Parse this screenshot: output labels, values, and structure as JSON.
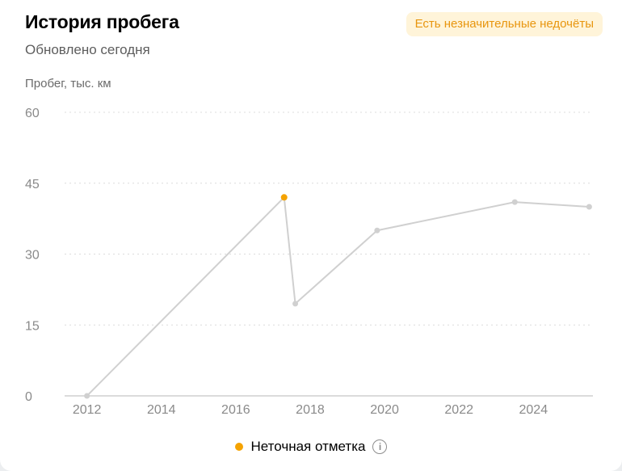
{
  "header": {
    "title": "История пробега",
    "subtitle": "Обновлено сегодня",
    "badge": "Есть незначительные недочёты"
  },
  "legend": {
    "label": "Неточная отметка",
    "info_icon": "info-icon",
    "info_glyph": "i"
  },
  "colors": {
    "accent": "#f5a300",
    "line": "#d0d0d0",
    "badge_bg": "#fff4d9",
    "badge_text": "#e8960f"
  },
  "chart_data": {
    "type": "line",
    "ylabel": "Пробег, тыс. км",
    "xlabel": "",
    "ylim": [
      0,
      60
    ],
    "yticks": [
      0,
      15,
      30,
      45,
      60
    ],
    "xlim": [
      2011.4,
      2025.6
    ],
    "xticks": [
      2012,
      2014,
      2016,
      2018,
      2020,
      2022,
      2024
    ],
    "grid": true,
    "series": [
      {
        "points": [
          {
            "x": 2012.0,
            "y": 0,
            "inaccurate": false
          },
          {
            "x": 2017.3,
            "y": 42,
            "inaccurate": true
          },
          {
            "x": 2017.6,
            "y": 19.5,
            "inaccurate": false
          },
          {
            "x": 2019.8,
            "y": 35,
            "inaccurate": false
          },
          {
            "x": 2023.5,
            "y": 41,
            "inaccurate": false
          },
          {
            "x": 2025.5,
            "y": 40,
            "inaccurate": false
          }
        ]
      }
    ]
  }
}
